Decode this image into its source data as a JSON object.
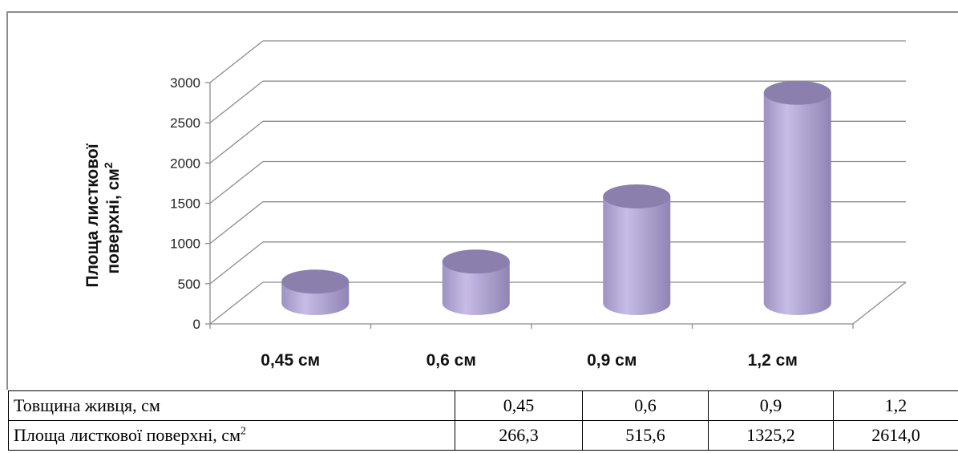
{
  "chart_data": {
    "type": "bar",
    "style": "3d-cylinder",
    "categories": [
      "0,45 см",
      "0,6 см",
      "0,9 см",
      "1,2 см"
    ],
    "values": [
      266.3,
      515.6,
      1325.2,
      2614.0
    ],
    "ylabel_line1": "Площа листкової",
    "ylabel_line2": "поверхні, см",
    "ylabel_sup": "2",
    "yticks": [
      "0",
      "500",
      "1000",
      "1500",
      "2000",
      "2500",
      "3000"
    ],
    "ylim": [
      0,
      3000
    ],
    "grid": true,
    "bar_color": "#b3a6d6",
    "bar_top_color": "#8b7fae"
  },
  "table": {
    "rows": [
      {
        "label": "Товщина живця, см",
        "label_sup": "",
        "cells": [
          "0,45",
          "0,6",
          "0,9",
          "1,2"
        ]
      },
      {
        "label": "Площа листкової поверхні, см",
        "label_sup": "2",
        "cells": [
          "266,3",
          "515,6",
          "1325,2",
          "2614,0"
        ]
      }
    ]
  }
}
